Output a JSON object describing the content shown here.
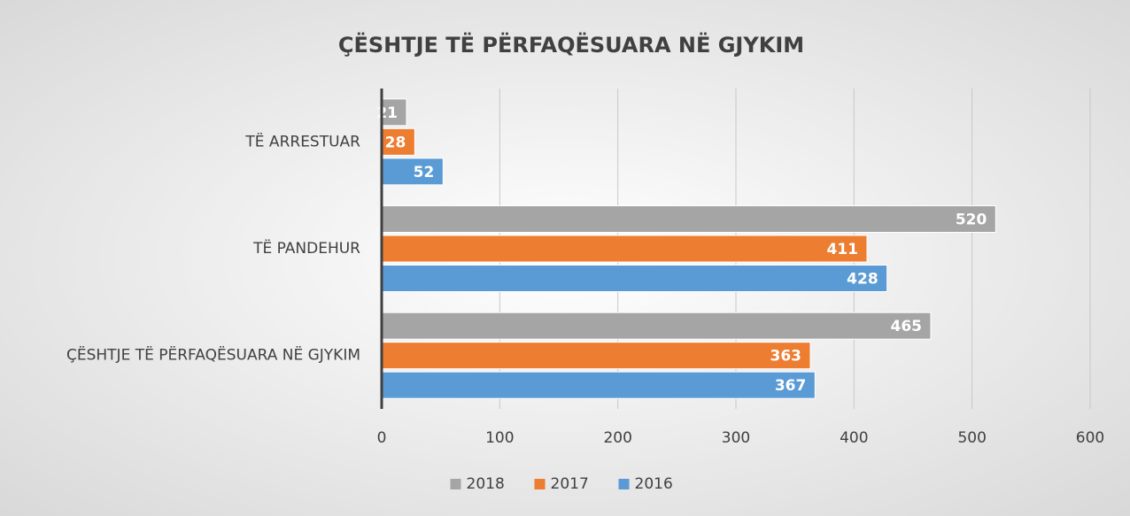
{
  "chart_data": {
    "type": "barh",
    "title": "ÇËSHTJE TË PËRFAQËSUARA NË GJYKIM",
    "categories": [
      "TË ARRESTUAR",
      "TË PANDEHUR",
      "ÇËSHTJE TË PËRFAQËSUARA NË GJYKIM"
    ],
    "series": [
      {
        "name": "2018",
        "color": "#a5a5a5",
        "values": [
          21,
          520,
          465
        ]
      },
      {
        "name": "2017",
        "color": "#ed7d31",
        "values": [
          28,
          411,
          363
        ]
      },
      {
        "name": "2016",
        "color": "#5b9bd5",
        "values": [
          52,
          428,
          367
        ]
      }
    ],
    "xlim": [
      0,
      600
    ],
    "xticks": [
      0,
      100,
      200,
      300,
      400,
      500,
      600
    ],
    "grid": true,
    "legend": "bottom"
  }
}
